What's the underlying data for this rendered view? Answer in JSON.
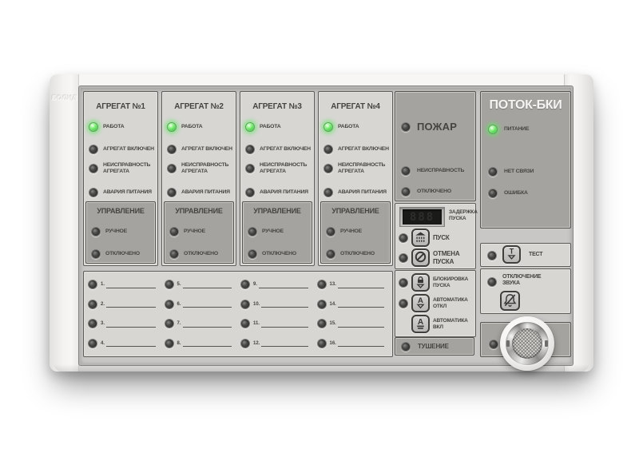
{
  "device": {
    "brand_logo": "БОЛИД",
    "model": "ПОТОК-БКИ"
  },
  "colors": {
    "led_on_green": "#5ee05e",
    "panel_light": "#d7d6d3",
    "panel_dark": "#a5a39f",
    "label_text": "#45443f",
    "title_text": "#f5f4f2"
  },
  "agregat_columns": {
    "titles": [
      "АГРЕГАТ №1",
      "АГРЕГАТ №2",
      "АГРЕГАТ №3",
      "АГРЕГАТ №4"
    ],
    "indicators": [
      {
        "label": "РАБОТА",
        "state": "on"
      },
      {
        "label": "АГРЕГАТ ВКЛЮЧЕН",
        "state": "off"
      },
      {
        "label": "НЕИСПРАВНОСТЬ АГРЕГАТА",
        "state": "off"
      },
      {
        "label": "АВАРИЯ ПИТАНИЯ",
        "state": "off"
      }
    ],
    "control": {
      "title": "УПРАВЛЕНИЕ",
      "indicators": [
        {
          "label": "РУЧНОЕ",
          "state": "off"
        },
        {
          "label": "ОТКЛЮЧЕНО",
          "state": "off"
        }
      ]
    }
  },
  "zones": {
    "numbers": [
      "1.",
      "2.",
      "3.",
      "4.",
      "5.",
      "6.",
      "7.",
      "8.",
      "9.",
      "10.",
      "11.",
      "12.",
      "13.",
      "14.",
      "15.",
      "16."
    ]
  },
  "fire_section": {
    "main": "ПОЖАР",
    "fault": "НЕИСПРАВНОСТЬ",
    "disabled": "ОТКЛЮЧЕНО",
    "states": {
      "main": "off",
      "fault": "off",
      "disabled": "off"
    }
  },
  "launch_section": {
    "delay_label": "ЗАДЕРЖКА ПУСКА",
    "display_ghost": "888",
    "start_label": "ПУСК",
    "cancel_label": "ОТМЕНА ПУСКА"
  },
  "automation_section": {
    "lockout_label": "БЛОКИРОВКА ПУСКА",
    "auto_off_label": "АВТОМАТИКА ОТКЛ",
    "auto_on_label": "АВТОМАТИКА ВКЛ"
  },
  "extinguishing": {
    "label": "ТУШЕНИЕ",
    "state": "off"
  },
  "status_section": {
    "title": "ПОТОК-БКИ",
    "power_label": "ПИТАНИЕ",
    "power_state": "on",
    "no_link_label": "НЕТ СВЯЗИ",
    "no_link_state": "off",
    "error_label": "ОШИБКА",
    "error_state": "off"
  },
  "test_section": {
    "label": "ТЕСТ"
  },
  "sound_section": {
    "label": "ОТКЛЮЧЕНИЕ ЗВУКА"
  }
}
